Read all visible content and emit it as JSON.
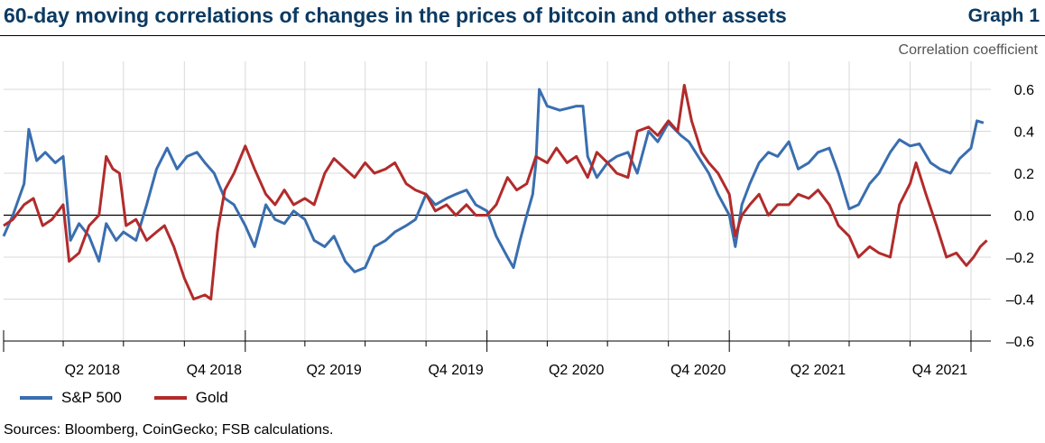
{
  "header": {
    "title": "60-day moving correlations of changes in the prices of bitcoin and other assets",
    "graph_label": "Graph 1",
    "unit_label": "Correlation coefficient"
  },
  "footer": {
    "source": "Sources: Bloomberg, CoinGecko; FSB calculations."
  },
  "colors": {
    "sp500": "#3a6eaf",
    "gold": "#b22b2b",
    "grid": "#d9d9d9",
    "title": "#0b3a62"
  },
  "chart_data": {
    "type": "line",
    "title": "60-day moving correlations of changes in the prices of bitcoin and other assets",
    "ylabel": "Correlation coefficient",
    "ylim": [
      -0.6,
      0.6
    ],
    "y_ticks": [
      0.6,
      0.4,
      0.2,
      0.0,
      -0.2,
      -0.4,
      -0.6
    ],
    "y_tick_labels": [
      "0.6",
      "0.4",
      "0.2",
      "0.0",
      "–0.2",
      "–0.4",
      "–0.6"
    ],
    "x_range": [
      "2018-01-01",
      "2022-01-31"
    ],
    "x_ticks": [
      "2018-04-01",
      "2018-07-01",
      "2018-10-01",
      "2019-01-01",
      "2019-04-01",
      "2019-07-01",
      "2019-10-01",
      "2020-01-01",
      "2020-04-01",
      "2020-07-01",
      "2020-10-01",
      "2021-01-01",
      "2021-04-01",
      "2021-07-01",
      "2021-10-01",
      "2022-01-01"
    ],
    "x_labels": [
      {
        "label": "Q2 2018",
        "date": "2018-05-15"
      },
      {
        "label": "Q4 2018",
        "date": "2018-11-15"
      },
      {
        "label": "Q2 2019",
        "date": "2019-05-15"
      },
      {
        "label": "Q4 2019",
        "date": "2019-11-15"
      },
      {
        "label": "Q2 2020",
        "date": "2020-05-15"
      },
      {
        "label": "Q4 2020",
        "date": "2020-11-15"
      },
      {
        "label": "Q2 2021",
        "date": "2021-05-15"
      },
      {
        "label": "Q4 2021",
        "date": "2021-11-15"
      }
    ],
    "legend_position": "bottom-left",
    "grid": true,
    "series": [
      {
        "name": "S&P 500",
        "color": "#3a6eaf",
        "points": [
          [
            "2018-01-01",
            -0.1
          ],
          [
            "2018-01-15",
            0.0
          ],
          [
            "2018-02-01",
            0.15
          ],
          [
            "2018-02-08",
            0.41
          ],
          [
            "2018-02-20",
            0.26
          ],
          [
            "2018-03-05",
            0.3
          ],
          [
            "2018-03-20",
            0.25
          ],
          [
            "2018-04-01",
            0.28
          ],
          [
            "2018-04-12",
            -0.12
          ],
          [
            "2018-04-25",
            -0.04
          ],
          [
            "2018-05-10",
            -0.1
          ],
          [
            "2018-05-25",
            -0.22
          ],
          [
            "2018-06-05",
            -0.04
          ],
          [
            "2018-06-20",
            -0.12
          ],
          [
            "2018-07-01",
            -0.08
          ],
          [
            "2018-07-20",
            -0.12
          ],
          [
            "2018-08-05",
            0.05
          ],
          [
            "2018-08-20",
            0.22
          ],
          [
            "2018-09-05",
            0.32
          ],
          [
            "2018-09-20",
            0.22
          ],
          [
            "2018-10-05",
            0.28
          ],
          [
            "2018-10-20",
            0.3
          ],
          [
            "2018-11-01",
            0.25
          ],
          [
            "2018-11-15",
            0.2
          ],
          [
            "2018-12-01",
            0.08
          ],
          [
            "2018-12-15",
            0.05
          ],
          [
            "2019-01-01",
            -0.05
          ],
          [
            "2019-01-15",
            -0.15
          ],
          [
            "2019-02-01",
            0.05
          ],
          [
            "2019-02-15",
            -0.02
          ],
          [
            "2019-03-01",
            -0.04
          ],
          [
            "2019-03-15",
            0.02
          ],
          [
            "2019-04-01",
            -0.02
          ],
          [
            "2019-04-15",
            -0.12
          ],
          [
            "2019-05-01",
            -0.15
          ],
          [
            "2019-05-15",
            -0.1
          ],
          [
            "2019-06-01",
            -0.22
          ],
          [
            "2019-06-15",
            -0.27
          ],
          [
            "2019-07-01",
            -0.25
          ],
          [
            "2019-07-15",
            -0.15
          ],
          [
            "2019-08-01",
            -0.12
          ],
          [
            "2019-08-15",
            -0.08
          ],
          [
            "2019-09-01",
            -0.05
          ],
          [
            "2019-09-15",
            -0.02
          ],
          [
            "2019-10-01",
            0.1
          ],
          [
            "2019-10-15",
            0.05
          ],
          [
            "2019-11-01",
            0.08
          ],
          [
            "2019-11-15",
            0.1
          ],
          [
            "2019-12-01",
            0.12
          ],
          [
            "2019-12-15",
            0.05
          ],
          [
            "2020-01-01",
            0.02
          ],
          [
            "2020-01-15",
            -0.1
          ],
          [
            "2020-02-01",
            -0.2
          ],
          [
            "2020-02-10",
            -0.25
          ],
          [
            "2020-02-20",
            -0.12
          ],
          [
            "2020-03-01",
            0.0
          ],
          [
            "2020-03-10",
            0.1
          ],
          [
            "2020-03-15",
            0.25
          ],
          [
            "2020-03-20",
            0.6
          ],
          [
            "2020-04-01",
            0.52
          ],
          [
            "2020-04-20",
            0.5
          ],
          [
            "2020-05-15",
            0.52
          ],
          [
            "2020-05-25",
            0.52
          ],
          [
            "2020-06-01",
            0.28
          ],
          [
            "2020-06-15",
            0.18
          ],
          [
            "2020-07-01",
            0.25
          ],
          [
            "2020-07-15",
            0.28
          ],
          [
            "2020-08-01",
            0.3
          ],
          [
            "2020-08-15",
            0.2
          ],
          [
            "2020-09-01",
            0.4
          ],
          [
            "2020-09-15",
            0.35
          ],
          [
            "2020-10-01",
            0.44
          ],
          [
            "2020-10-20",
            0.38
          ],
          [
            "2020-11-01",
            0.35
          ],
          [
            "2020-11-15",
            0.28
          ],
          [
            "2020-12-01",
            0.2
          ],
          [
            "2020-12-15",
            0.1
          ],
          [
            "2021-01-01",
            0.0
          ],
          [
            "2021-01-10",
            -0.15
          ],
          [
            "2021-01-20",
            0.05
          ],
          [
            "2021-02-01",
            0.15
          ],
          [
            "2021-02-15",
            0.25
          ],
          [
            "2021-03-01",
            0.3
          ],
          [
            "2021-03-15",
            0.28
          ],
          [
            "2021-04-01",
            0.35
          ],
          [
            "2021-04-15",
            0.22
          ],
          [
            "2021-05-01",
            0.25
          ],
          [
            "2021-05-15",
            0.3
          ],
          [
            "2021-06-01",
            0.32
          ],
          [
            "2021-06-15",
            0.2
          ],
          [
            "2021-07-01",
            0.03
          ],
          [
            "2021-07-15",
            0.05
          ],
          [
            "2021-08-01",
            0.15
          ],
          [
            "2021-08-15",
            0.2
          ],
          [
            "2021-09-01",
            0.3
          ],
          [
            "2021-09-15",
            0.36
          ],
          [
            "2021-10-01",
            0.33
          ],
          [
            "2021-10-15",
            0.34
          ],
          [
            "2021-11-01",
            0.25
          ],
          [
            "2021-11-15",
            0.22
          ],
          [
            "2021-12-01",
            0.2
          ],
          [
            "2021-12-15",
            0.27
          ],
          [
            "2022-01-01",
            0.32
          ],
          [
            "2022-01-10",
            0.45
          ],
          [
            "2022-01-20",
            0.44
          ]
        ]
      },
      {
        "name": "Gold",
        "color": "#b22b2b",
        "points": [
          [
            "2018-01-01",
            -0.05
          ],
          [
            "2018-01-15",
            -0.02
          ],
          [
            "2018-02-01",
            0.05
          ],
          [
            "2018-02-15",
            0.08
          ],
          [
            "2018-03-01",
            -0.05
          ],
          [
            "2018-03-15",
            -0.02
          ],
          [
            "2018-04-01",
            0.05
          ],
          [
            "2018-04-10",
            -0.22
          ],
          [
            "2018-04-25",
            -0.18
          ],
          [
            "2018-05-10",
            -0.05
          ],
          [
            "2018-05-25",
            0.0
          ],
          [
            "2018-06-05",
            0.28
          ],
          [
            "2018-06-15",
            0.22
          ],
          [
            "2018-06-25",
            0.2
          ],
          [
            "2018-07-05",
            -0.05
          ],
          [
            "2018-07-20",
            -0.02
          ],
          [
            "2018-08-05",
            -0.12
          ],
          [
            "2018-08-20",
            -0.08
          ],
          [
            "2018-09-01",
            -0.05
          ],
          [
            "2018-09-15",
            -0.15
          ],
          [
            "2018-10-01",
            -0.3
          ],
          [
            "2018-10-15",
            -0.4
          ],
          [
            "2018-11-01",
            -0.38
          ],
          [
            "2018-11-10",
            -0.4
          ],
          [
            "2018-11-20",
            -0.08
          ],
          [
            "2018-12-01",
            0.12
          ],
          [
            "2018-12-15",
            0.2
          ],
          [
            "2019-01-01",
            0.33
          ],
          [
            "2019-01-15",
            0.22
          ],
          [
            "2019-02-01",
            0.1
          ],
          [
            "2019-02-15",
            0.05
          ],
          [
            "2019-03-01",
            0.12
          ],
          [
            "2019-03-15",
            0.05
          ],
          [
            "2019-04-01",
            0.08
          ],
          [
            "2019-04-15",
            0.05
          ],
          [
            "2019-05-01",
            0.2
          ],
          [
            "2019-05-15",
            0.27
          ],
          [
            "2019-06-01",
            0.22
          ],
          [
            "2019-06-15",
            0.18
          ],
          [
            "2019-07-01",
            0.25
          ],
          [
            "2019-07-15",
            0.2
          ],
          [
            "2019-08-01",
            0.22
          ],
          [
            "2019-08-15",
            0.25
          ],
          [
            "2019-09-01",
            0.15
          ],
          [
            "2019-09-15",
            0.12
          ],
          [
            "2019-10-01",
            0.1
          ],
          [
            "2019-10-15",
            0.02
          ],
          [
            "2019-11-01",
            0.05
          ],
          [
            "2019-11-15",
            0.0
          ],
          [
            "2019-12-01",
            0.05
          ],
          [
            "2019-12-15",
            0.0
          ],
          [
            "2020-01-01",
            0.0
          ],
          [
            "2020-01-15",
            0.05
          ],
          [
            "2020-02-01",
            0.18
          ],
          [
            "2020-02-15",
            0.12
          ],
          [
            "2020-03-01",
            0.15
          ],
          [
            "2020-03-15",
            0.28
          ],
          [
            "2020-04-01",
            0.25
          ],
          [
            "2020-04-15",
            0.32
          ],
          [
            "2020-05-01",
            0.25
          ],
          [
            "2020-05-15",
            0.28
          ],
          [
            "2020-06-01",
            0.18
          ],
          [
            "2020-06-15",
            0.3
          ],
          [
            "2020-07-01",
            0.25
          ],
          [
            "2020-07-15",
            0.2
          ],
          [
            "2020-08-01",
            0.18
          ],
          [
            "2020-08-15",
            0.4
          ],
          [
            "2020-09-01",
            0.42
          ],
          [
            "2020-09-15",
            0.38
          ],
          [
            "2020-10-01",
            0.45
          ],
          [
            "2020-10-15",
            0.4
          ],
          [
            "2020-10-25",
            0.62
          ],
          [
            "2020-11-05",
            0.45
          ],
          [
            "2020-11-20",
            0.3
          ],
          [
            "2020-12-01",
            0.25
          ],
          [
            "2020-12-15",
            0.2
          ],
          [
            "2021-01-01",
            0.1
          ],
          [
            "2021-01-10",
            -0.1
          ],
          [
            "2021-01-20",
            0.0
          ],
          [
            "2021-02-01",
            0.05
          ],
          [
            "2021-02-15",
            0.1
          ],
          [
            "2021-03-01",
            0.0
          ],
          [
            "2021-03-15",
            0.05
          ],
          [
            "2021-04-01",
            0.05
          ],
          [
            "2021-04-15",
            0.1
          ],
          [
            "2021-05-01",
            0.08
          ],
          [
            "2021-05-15",
            0.12
          ],
          [
            "2021-06-01",
            0.05
          ],
          [
            "2021-06-15",
            -0.05
          ],
          [
            "2021-07-01",
            -0.1
          ],
          [
            "2021-07-15",
            -0.2
          ],
          [
            "2021-08-01",
            -0.15
          ],
          [
            "2021-08-15",
            -0.18
          ],
          [
            "2021-09-01",
            -0.2
          ],
          [
            "2021-09-15",
            0.05
          ],
          [
            "2021-10-01",
            0.15
          ],
          [
            "2021-10-10",
            0.25
          ],
          [
            "2021-10-25",
            0.1
          ],
          [
            "2021-11-10",
            -0.05
          ],
          [
            "2021-11-25",
            -0.2
          ],
          [
            "2021-12-10",
            -0.18
          ],
          [
            "2021-12-25",
            -0.24
          ],
          [
            "2022-01-05",
            -0.2
          ],
          [
            "2022-01-15",
            -0.15
          ],
          [
            "2022-01-25",
            -0.12
          ]
        ]
      }
    ]
  }
}
